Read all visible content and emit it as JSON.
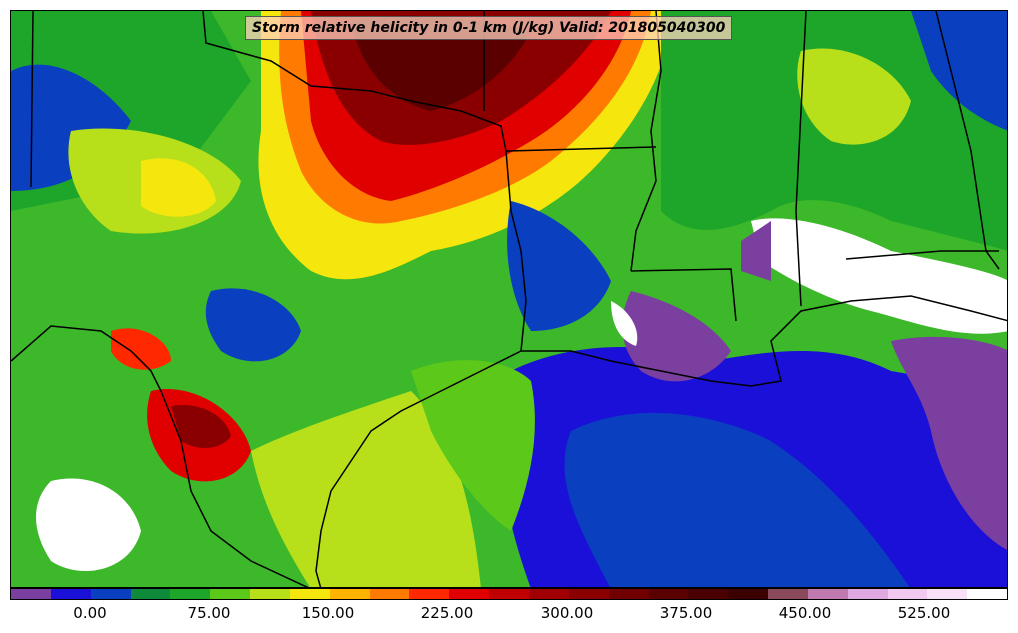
{
  "title": "Storm relative helicity in 0-1 km (J/kg) Valid: 201805040300",
  "colorbar": {
    "colors": [
      "#7b3fa0",
      "#1a10d8",
      "#0a3fc0",
      "#0e8a3a",
      "#1ea62a",
      "#5cc81a",
      "#b7e01a",
      "#f5e60e",
      "#ffb400",
      "#ff7a00",
      "#ff2800",
      "#e00000",
      "#c00000",
      "#a00000",
      "#8a0000",
      "#700000",
      "#5a0000",
      "#4a0000",
      "#3a0000",
      "#8a4a5a",
      "#c07ab0",
      "#e0a8e0",
      "#f0c8f0",
      "#f8e0f8",
      "#ffffff"
    ],
    "tick_labels": [
      "0.00",
      "75.00",
      "150.00",
      "225.00",
      "300.00",
      "375.00",
      "450.00",
      "525.00"
    ]
  }
}
